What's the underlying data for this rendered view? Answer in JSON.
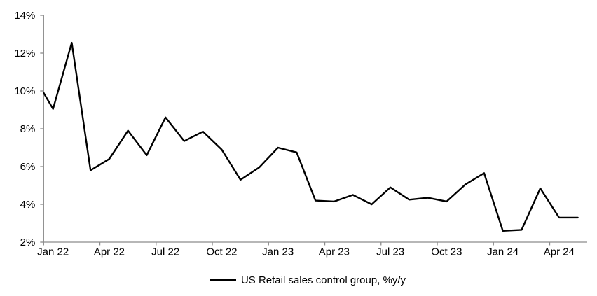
{
  "chart_data": {
    "type": "line",
    "title": "",
    "legend_label": "US Retail sales control group, %y/y",
    "legend_position": "bottom",
    "grid": "off",
    "line_color": "#000000",
    "axis_color": "#8C8C8C",
    "ylim": [
      2,
      14
    ],
    "ytick_step": 2,
    "ytick_labels": [
      "2%",
      "4%",
      "6%",
      "8%",
      "10%",
      "12%",
      "14%"
    ],
    "xtick_labels": [
      "Jan 22",
      "Apr 22",
      "Jul 22",
      "Oct 22",
      "Jan 23",
      "Apr 23",
      "Jul 23",
      "Oct 23",
      "Jan 24",
      "Apr 24"
    ],
    "xtick_every_n_categories": 3,
    "axis_entry_value_pct": 9.9,
    "categories": [
      "Jan 22",
      "Feb 22",
      "Mar 22",
      "Apr 22",
      "May 22",
      "Jun 22",
      "Jul 22",
      "Aug 22",
      "Sep 22",
      "Oct 22",
      "Nov 22",
      "Dec 22",
      "Jan 23",
      "Feb 23",
      "Mar 23",
      "Apr 23",
      "May 23",
      "Jun 23",
      "Jul 23",
      "Aug 23",
      "Sep 23",
      "Oct 23",
      "Nov 23",
      "Dec 23",
      "Jan 24",
      "Feb 24",
      "Mar 24",
      "Apr 24",
      "May 24"
    ],
    "values": [
      9.05,
      12.55,
      5.8,
      6.4,
      7.9,
      6.6,
      8.6,
      7.35,
      7.85,
      6.9,
      5.3,
      5.95,
      7.0,
      6.75,
      4.2,
      4.15,
      4.5,
      4.0,
      4.9,
      4.25,
      4.35,
      4.15,
      5.05,
      5.65,
      2.6,
      2.65,
      4.85,
      3.3,
      3.3
    ]
  }
}
